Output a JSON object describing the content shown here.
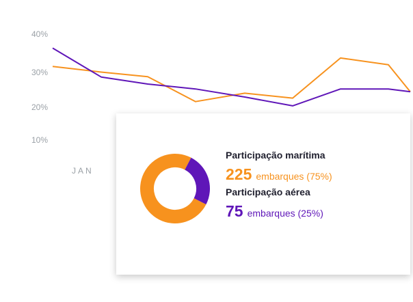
{
  "colors": {
    "sea": "#f7921e",
    "air": "#5f16b8",
    "tick": "#9aa0a6"
  },
  "chart_data": [
    {
      "type": "line",
      "x_labels": [
        "JAN"
      ],
      "y_ticks": [
        "40%",
        "30%",
        "20%",
        "10%"
      ],
      "ylim": [
        5,
        42
      ],
      "series": [
        {
          "color": "#f7921e",
          "values": [
            31.8,
            30.2,
            28.9,
            21.8,
            24.2,
            22.8,
            34.2,
            32.3,
            24.6
          ]
        },
        {
          "color": "#5f16b8",
          "values": [
            37,
            28.8,
            26.8,
            25.4,
            23.1,
            20.6,
            25.4,
            25.4,
            24.6
          ]
        }
      ],
      "grid": false,
      "legend": "none"
    },
    {
      "type": "pie",
      "donut": true,
      "slices": [
        {
          "label": "Participação marítima",
          "value": 75,
          "color": "#f7921e"
        },
        {
          "label": "Participação aérea",
          "value": 25,
          "color": "#5f16b8"
        }
      ]
    }
  ],
  "card": {
    "sea": {
      "title": "Participação marítima",
      "count": "225",
      "detail": "embarques (75%)"
    },
    "air": {
      "title": "Participação aérea",
      "count": "75",
      "detail": "embarques (25%)"
    }
  }
}
